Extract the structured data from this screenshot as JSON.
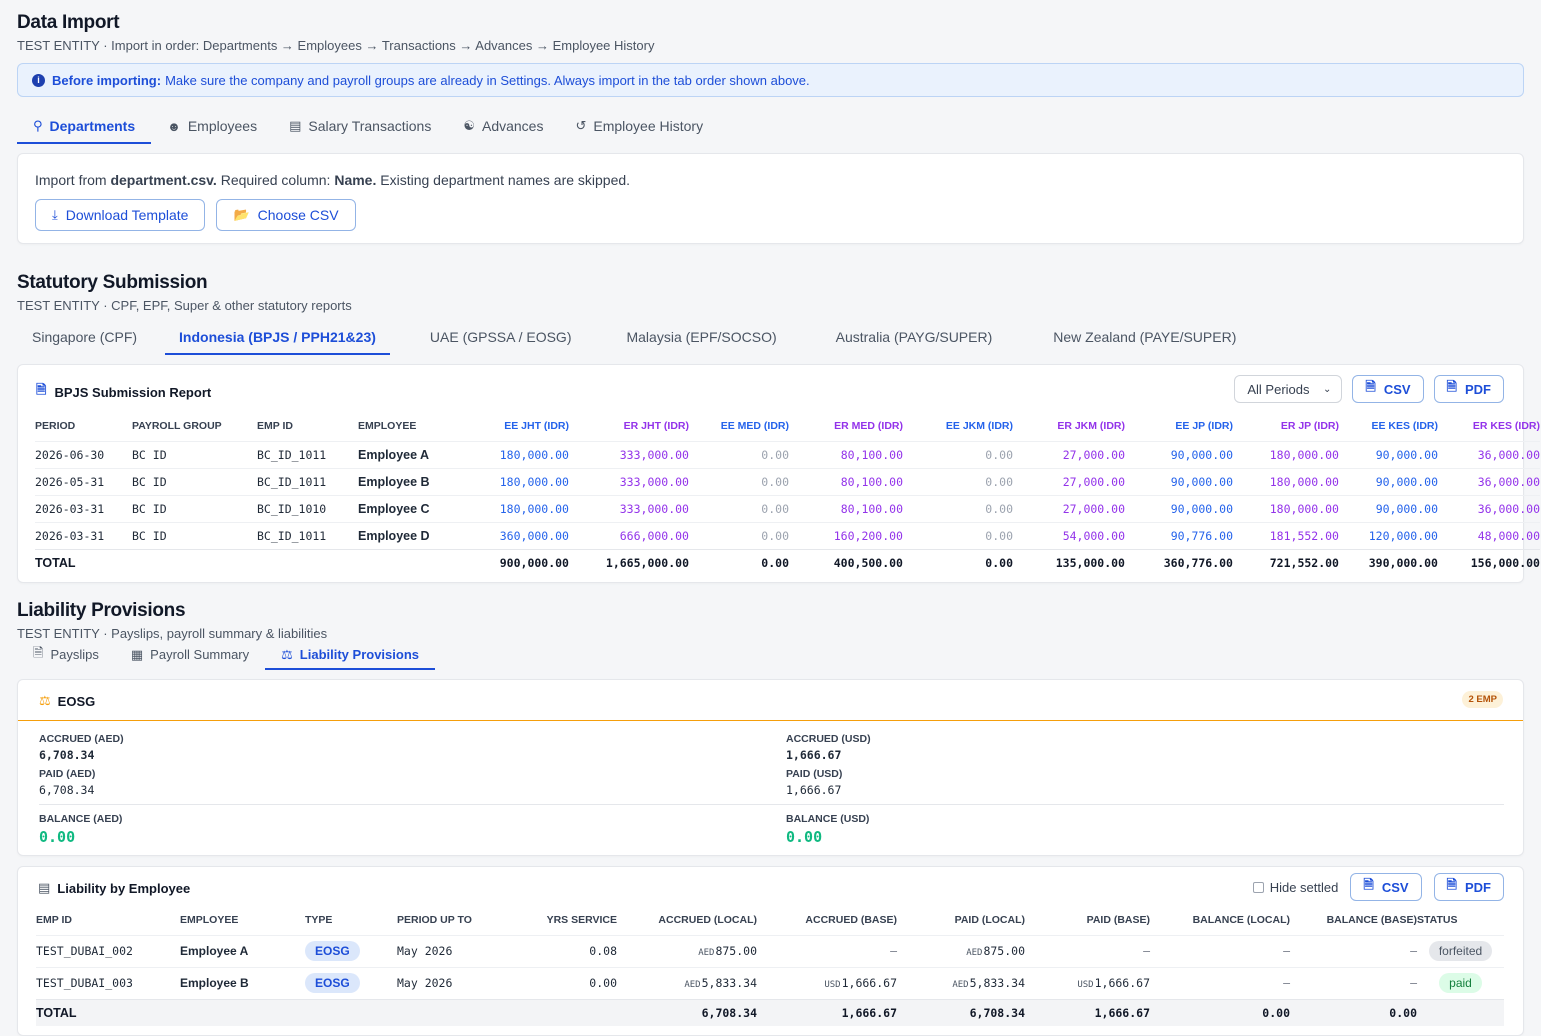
{
  "data_import": {
    "title": "Data Import",
    "subtitle": "TEST ENTITY · Import in order: Departments → Employees → Transactions → Advances → Employee History",
    "notice_bold": "Before importing:",
    "notice_text": "Make sure the company and payroll groups are already in Settings. Always import in the tab order shown above.",
    "tabs": [
      {
        "label": "Departments",
        "icon": "sitemap-icon"
      },
      {
        "label": "Employees",
        "icon": "users-icon"
      },
      {
        "label": "Salary Transactions",
        "icon": "money-icon"
      },
      {
        "label": "Advances",
        "icon": "hand-coin-icon"
      },
      {
        "label": "Employee History",
        "icon": "history-icon"
      }
    ],
    "active_tab": "Departments",
    "import_prefix": "Import from",
    "import_file": "department.csv.",
    "import_mid": "Required column:",
    "import_col": "Name.",
    "import_suffix": "Existing department names are skipped.",
    "download_label": "Download Template",
    "choose_label": "Choose CSV"
  },
  "statutory": {
    "title": "Statutory Submission",
    "subtitle": "TEST ENTITY · CPF, EPF, Super & other statutory reports",
    "tabs": [
      "Singapore (CPF)",
      "Indonesia (BPJS / PPH21&23)",
      "UAE (GPSSA / EOSG)",
      "Malaysia (EPF/SOCSO)",
      "Australia (PAYG/SUPER)",
      "New Zealand (PAYE/SUPER)"
    ],
    "active_tab": "Indonesia (BPJS / PPH21&23)",
    "report_title": "BPJS Submission Report",
    "period_select": "All Periods",
    "csv_label": "CSV",
    "pdf_label": "PDF",
    "columns": [
      "PERIOD",
      "PAYROLL GROUP",
      "EMP ID",
      "EMPLOYEE",
      "EE JHT (IDR)",
      "ER JHT (IDR)",
      "EE MED (IDR)",
      "ER MED (IDR)",
      "EE JKM (IDR)",
      "ER JKM (IDR)",
      "EE JP (IDR)",
      "ER JP (IDR)",
      "EE KES (IDR)",
      "ER KES (IDR)"
    ],
    "rows": [
      [
        "2026-06-30",
        "BC ID",
        "BC_ID_1011",
        "Employee A",
        "180,000.00",
        "333,000.00",
        "0.00",
        "80,100.00",
        "0.00",
        "27,000.00",
        "90,000.00",
        "180,000.00",
        "90,000.00",
        "36,000.00"
      ],
      [
        "2026-05-31",
        "BC ID",
        "BC_ID_1011",
        "Employee B",
        "180,000.00",
        "333,000.00",
        "0.00",
        "80,100.00",
        "0.00",
        "27,000.00",
        "90,000.00",
        "180,000.00",
        "90,000.00",
        "36,000.00"
      ],
      [
        "2026-03-31",
        "BC ID",
        "BC_ID_1010",
        "Employee C",
        "180,000.00",
        "333,000.00",
        "0.00",
        "80,100.00",
        "0.00",
        "27,000.00",
        "90,000.00",
        "180,000.00",
        "90,000.00",
        "36,000.00"
      ],
      [
        "2026-03-31",
        "BC ID",
        "BC_ID_1011",
        "Employee D",
        "360,000.00",
        "666,000.00",
        "0.00",
        "160,200.00",
        "0.00",
        "54,000.00",
        "90,776.00",
        "181,552.00",
        "120,000.00",
        "48,000.00"
      ]
    ],
    "total_label": "TOTAL",
    "totals": [
      "900,000.00",
      "1,665,000.00",
      "0.00",
      "400,500.00",
      "0.00",
      "135,000.00",
      "360,776.00",
      "721,552.00",
      "390,000.00",
      "156,000.00"
    ]
  },
  "liability": {
    "title": "Liability Provisions",
    "subtitle": "TEST ENTITY · Payslips, payroll summary & liabilities",
    "tabs": [
      {
        "label": "Payslips",
        "icon": "file-dollar-icon"
      },
      {
        "label": "Payroll Summary",
        "icon": "table-icon"
      },
      {
        "label": "Liability Provisions",
        "icon": "scale-icon"
      }
    ],
    "active_tab": "Liability Provisions",
    "eosg_title": "EOSG",
    "eosg_badge": "2 EMP",
    "accrued_aed_label": "ACCRUED (AED)",
    "accrued_aed": "6,708.34",
    "paid_aed_label": "PAID (AED)",
    "paid_aed": "6,708.34",
    "balance_aed_label": "BALANCE (AED)",
    "balance_aed": "0.00",
    "accrued_usd_label": "ACCRUED (USD)",
    "accrued_usd": "1,666.67",
    "paid_usd_label": "PAID (USD)",
    "paid_usd": "1,666.67",
    "balance_usd_label": "BALANCE (USD)",
    "balance_usd": "0.00",
    "by_employee_title": "Liability by Employee",
    "hide_settled_label": "Hide settled",
    "csv_label": "CSV",
    "pdf_label": "PDF",
    "columns": [
      "EMP ID",
      "EMPLOYEE",
      "TYPE",
      "PERIOD UP TO",
      "YRS SERVICE",
      "ACCRUED (LOCAL)",
      "ACCRUED (BASE)",
      "PAID (LOCAL)",
      "PAID (BASE)",
      "BALANCE (LOCAL)",
      "BALANCE (BASE)",
      "STATUS"
    ],
    "rows": [
      {
        "emp_id": "TEST_DUBAI_002",
        "employee": "Employee A",
        "type": "EOSG",
        "period": "May 2026",
        "yrs": "0.08",
        "accrued_local_ccy": "AED",
        "accrued_local": "875.00",
        "accrued_base_ccy": "",
        "accrued_base": "–",
        "paid_local_ccy": "AED",
        "paid_local": "875.00",
        "paid_base_ccy": "",
        "paid_base": "–",
        "balance_local": "–",
        "balance_base": "–",
        "status": "forfeited"
      },
      {
        "emp_id": "TEST_DUBAI_003",
        "employee": "Employee B",
        "type": "EOSG",
        "period": "May 2026",
        "yrs": "0.00",
        "accrued_local_ccy": "AED",
        "accrued_local": "5,833.34",
        "accrued_base_ccy": "USD",
        "accrued_base": "1,666.67",
        "paid_local_ccy": "AED",
        "paid_local": "5,833.34",
        "paid_base_ccy": "USD",
        "paid_base": "1,666.67",
        "balance_local": "–",
        "balance_base": "–",
        "status": "paid"
      }
    ],
    "total_label": "TOTAL",
    "totals": {
      "accrued_local": "6,708.34",
      "accrued_base": "1,666.67",
      "paid_local": "6,708.34",
      "paid_base": "1,666.67",
      "balance_local": "0.00",
      "balance_base": "0.00"
    }
  },
  "colors": {
    "accent": "#1d4ed8",
    "purple": "#9333ea",
    "green": "#10b981",
    "orange": "#f59e0b"
  }
}
